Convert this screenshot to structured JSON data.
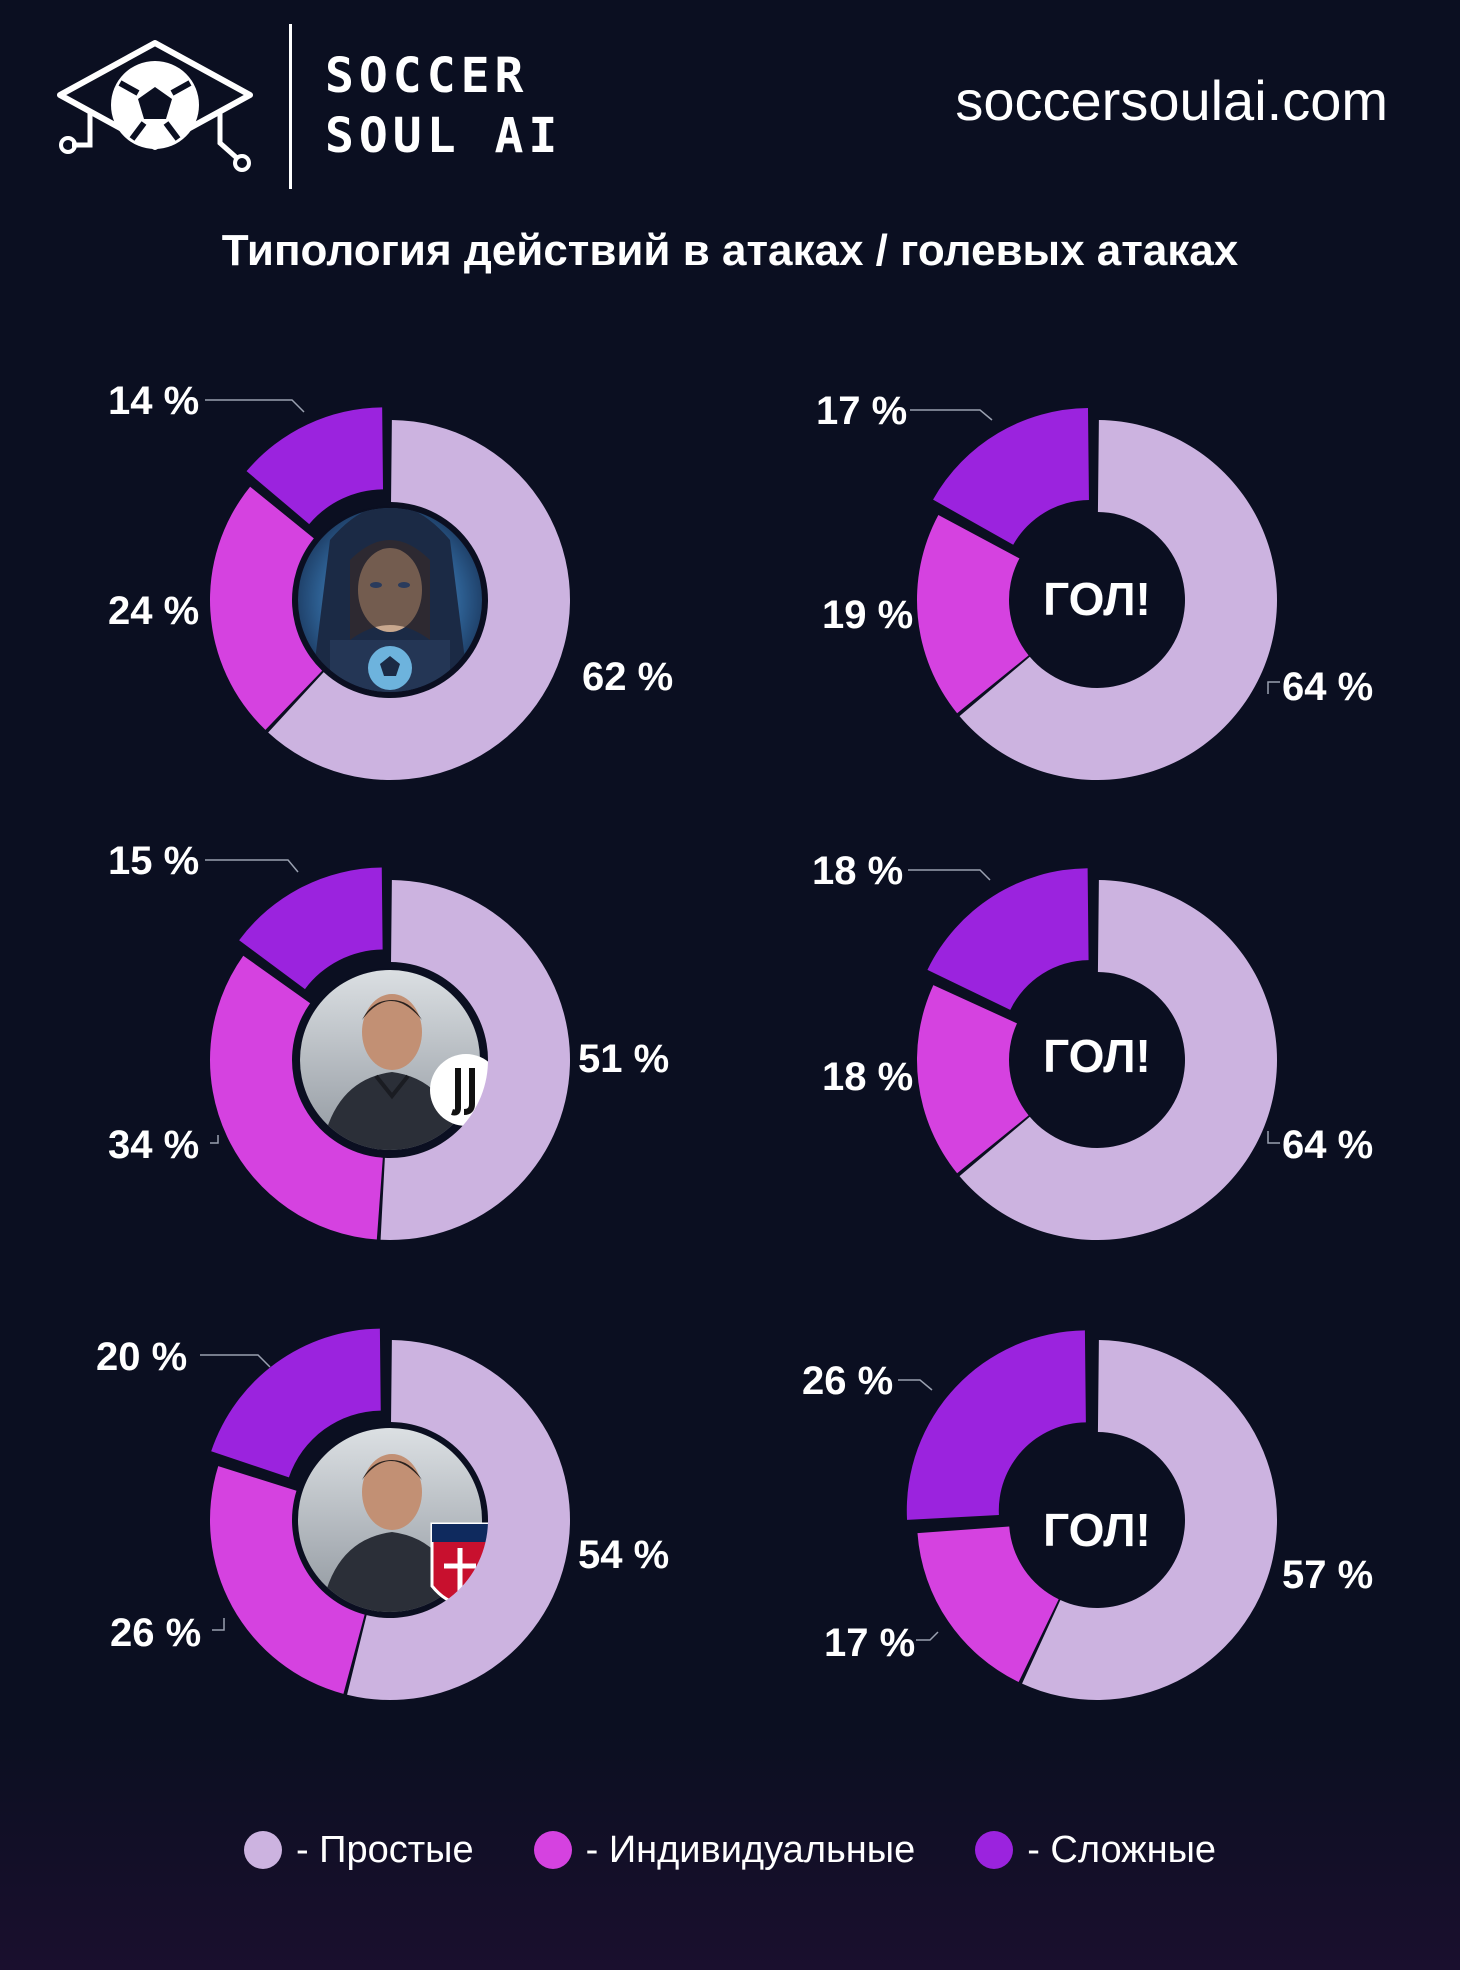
{
  "header": {
    "brand_line1": "SOCCER",
    "brand_line2": "SOUL AI",
    "url": "soccersoulai.com",
    "logo_icon": "soccer-ball-graduation-cap-icon"
  },
  "title": "Типология действий в атаках / голевых атаках",
  "colors": {
    "simple": "#ccb3e0",
    "individual": "#d542e0",
    "complex": "#9b23de",
    "background": "#0b0f21"
  },
  "legend": [
    {
      "label": "- Простые",
      "color": "#ccb3e0"
    },
    {
      "label": "- Индивидуальные",
      "color": "#d542e0"
    },
    {
      "label": "- Сложные",
      "color": "#9b23de"
    }
  ],
  "goal_label": "ГОЛ!",
  "chart_data": [
    {
      "type": "pie",
      "subtype": "donut",
      "row": 1,
      "column": "attacks",
      "center": "ai-avatar",
      "categories": [
        "Простые",
        "Индивидуальные",
        "Сложные"
      ],
      "values": [
        62,
        24,
        14
      ],
      "labels": [
        "62 %",
        "24 %",
        "14 %"
      ]
    },
    {
      "type": "pie",
      "subtype": "donut",
      "row": 1,
      "column": "goal-attacks",
      "center": "ГОЛ!",
      "categories": [
        "Простые",
        "Индивидуальные",
        "Сложные"
      ],
      "values": [
        64,
        19,
        17
      ],
      "labels": [
        "64 %",
        "19 %",
        "17 %"
      ]
    },
    {
      "type": "pie",
      "subtype": "donut",
      "row": 2,
      "column": "attacks",
      "center": "coach-juventus",
      "categories": [
        "Простые",
        "Индивидуальные",
        "Сложные"
      ],
      "values": [
        51,
        34,
        15
      ],
      "labels": [
        "51 %",
        "34 %",
        "15 %"
      ]
    },
    {
      "type": "pie",
      "subtype": "donut",
      "row": 2,
      "column": "goal-attacks",
      "center": "ГОЛ!",
      "categories": [
        "Простые",
        "Индивидуальные",
        "Сложные"
      ],
      "values": [
        64,
        18,
        18
      ],
      "labels": [
        "64 %",
        "18 %",
        "18 %"
      ]
    },
    {
      "type": "pie",
      "subtype": "donut",
      "row": 3,
      "column": "attacks",
      "center": "coach-bologna",
      "categories": [
        "Простые",
        "Индивидуальные",
        "Сложные"
      ],
      "values": [
        54,
        26,
        20
      ],
      "labels": [
        "54 %",
        "26 %",
        "20 %"
      ]
    },
    {
      "type": "pie",
      "subtype": "donut",
      "row": 3,
      "column": "goal-attacks",
      "center": "ГОЛ!",
      "categories": [
        "Простые",
        "Индивидуальные",
        "Сложные"
      ],
      "values": [
        57,
        17,
        26
      ],
      "labels": [
        "57 %",
        "17 %",
        "26 %"
      ]
    }
  ]
}
